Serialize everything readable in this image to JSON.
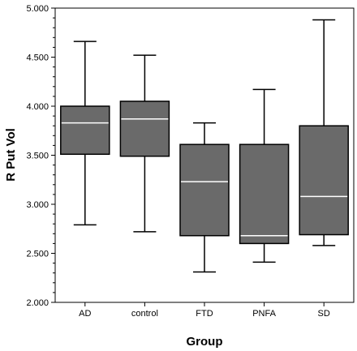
{
  "chart_data": {
    "type": "boxplot",
    "xlabel": "Group",
    "ylabel": "R Put Vol",
    "ylim": [
      2.0,
      5.0
    ],
    "yticks": [
      2.0,
      2.5,
      3.0,
      3.5,
      4.0,
      4.5,
      5.0
    ],
    "ytick_labels": [
      "2.000",
      "2.500",
      "3.000",
      "3.500",
      "4.000",
      "4.500",
      "5.000"
    ],
    "categories": [
      "AD",
      "control",
      "FTD",
      "PNFA",
      "SD"
    ],
    "boxes": [
      {
        "category": "AD",
        "whisker_low": 2.79,
        "q1": 3.51,
        "median": 3.83,
        "q3": 4.0,
        "whisker_high": 4.66
      },
      {
        "category": "control",
        "whisker_low": 2.72,
        "q1": 3.49,
        "median": 3.87,
        "q3": 4.05,
        "whisker_high": 4.52
      },
      {
        "category": "FTD",
        "whisker_low": 2.31,
        "q1": 2.68,
        "median": 3.23,
        "q3": 3.61,
        "whisker_high": 3.83
      },
      {
        "category": "PNFA",
        "whisker_low": 2.41,
        "q1": 2.6,
        "median": 2.68,
        "q3": 3.61,
        "whisker_high": 4.17
      },
      {
        "category": "SD",
        "whisker_low": 2.58,
        "q1": 2.69,
        "median": 3.08,
        "q3": 3.8,
        "whisker_high": 4.88
      }
    ],
    "box_color": "#6a6a6a",
    "median_color": "#ffffff",
    "grid": false,
    "legend": "none"
  }
}
